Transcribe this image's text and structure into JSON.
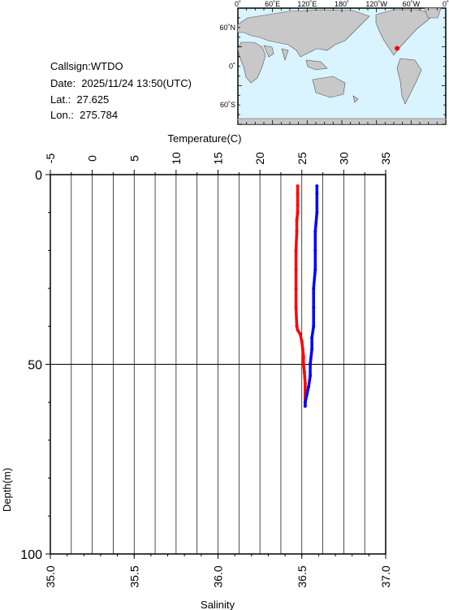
{
  "info": {
    "callsign": "Callsign:WTDO",
    "date": "Date:  2025/11/24 13:50(UTC)",
    "lat": "Lat.:  27.625",
    "lon": "Lon.:  275.784"
  },
  "map": {
    "top_labels": [
      "0˚",
      "60˚E",
      "120˚E",
      "180˚",
      "120˚W",
      "60˚W",
      "0˚"
    ],
    "left_labels": [
      "60˚N",
      "0˚",
      "60˚S"
    ],
    "ocean_color": "#d9f4ff",
    "land_color": "#c8c8c8",
    "marker_color": "#ff0000",
    "marker_lon": 275.784,
    "marker_lat": 27.625
  },
  "chart_data": {
    "type": "line",
    "title": "",
    "x_top_label": "Temperature(C)",
    "x_bottom_label": "Salinity",
    "y_label": "Depth(m)",
    "temperature_ticks": [
      "-5",
      "0",
      "5",
      "10",
      "15",
      "20",
      "25",
      "30",
      "35"
    ],
    "salinity_ticks": [
      "35.0",
      "35.5",
      "36.0",
      "36.5",
      "37.0"
    ],
    "depth_ticks": [
      "0",
      "50",
      "100"
    ],
    "temperature_range": [
      -5,
      35
    ],
    "salinity_range": [
      35.0,
      37.0
    ],
    "depth_range": [
      0,
      100
    ],
    "grid": true,
    "series": [
      {
        "color": "#ff0000",
        "axis": "temperature",
        "depth": [
          3,
          5,
          8,
          10,
          12,
          15,
          20,
          25,
          30,
          35,
          40,
          41,
          42,
          44,
          46,
          48,
          50,
          52,
          55,
          58,
          61
        ],
        "values": [
          24.5,
          24.5,
          24.5,
          24.5,
          24.4,
          24.4,
          24.3,
          24.3,
          24.3,
          24.3,
          24.4,
          24.5,
          24.8,
          25.0,
          25.1,
          25.2,
          25.2,
          25.3,
          25.4,
          25.4,
          25.4
        ]
      },
      {
        "color": "#0000ff",
        "axis": "salinity",
        "depth": [
          3,
          5,
          10,
          15,
          20,
          25,
          30,
          35,
          40,
          43,
          46,
          50,
          53,
          56,
          58,
          60,
          61
        ],
        "values": [
          36.59,
          36.59,
          36.59,
          36.58,
          36.58,
          36.58,
          36.57,
          36.57,
          36.57,
          36.56,
          36.56,
          36.55,
          36.55,
          36.54,
          36.53,
          36.52,
          36.52
        ]
      }
    ]
  }
}
